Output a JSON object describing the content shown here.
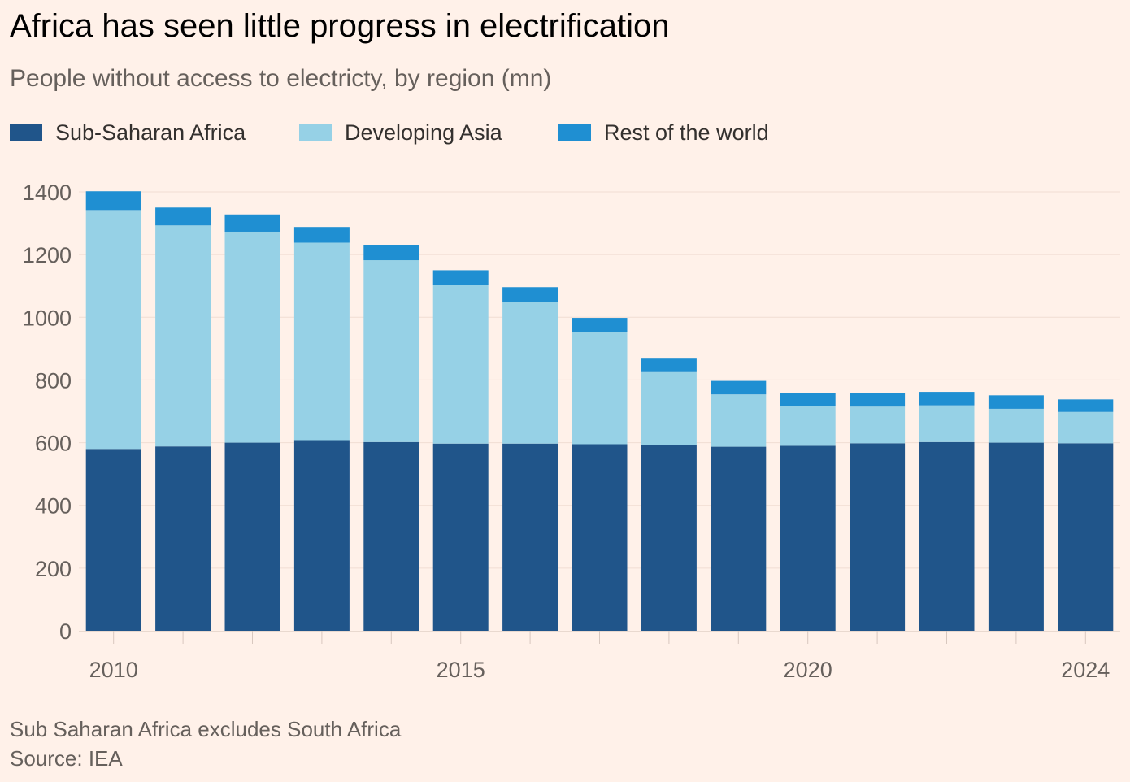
{
  "title": "Africa has seen little progress in electrification",
  "subtitle": "People without access to electricty, by region (mn)",
  "colors": {
    "background": "#fff1e9",
    "sub_saharan_africa": "#20558a",
    "developing_asia": "#96d1e6",
    "rest_of_world": "#1f8fd2"
  },
  "footnote": "Sub Saharan Africa excludes South Africa",
  "source": "Source: IEA",
  "chart_data": {
    "type": "bar",
    "stacked": true,
    "x": [
      2010,
      2011,
      2012,
      2013,
      2014,
      2015,
      2016,
      2017,
      2018,
      2019,
      2020,
      2021,
      2022,
      2023,
      2024
    ],
    "x_tick_labels": [
      "2010",
      "2015",
      "2020",
      "2024"
    ],
    "y_tick_labels": [
      "0",
      "200",
      "400",
      "600",
      "800",
      "1000",
      "1200",
      "1400"
    ],
    "ylim": [
      0,
      1400
    ],
    "grid": true,
    "legend_position": "top-left",
    "series": [
      {
        "name": "Sub-Saharan Africa",
        "values": [
          580,
          588,
          600,
          608,
          602,
          597,
          597,
          595,
          592,
          587,
          590,
          598,
          602,
          600,
          598
        ]
      },
      {
        "name": "Developing Asia",
        "values": [
          762,
          705,
          673,
          630,
          580,
          505,
          453,
          357,
          233,
          167,
          127,
          117,
          117,
          108,
          100
        ]
      },
      {
        "name": "Rest of the world",
        "values": [
          60,
          57,
          55,
          50,
          49,
          48,
          46,
          46,
          43,
          43,
          42,
          43,
          43,
          43,
          40
        ]
      }
    ]
  }
}
